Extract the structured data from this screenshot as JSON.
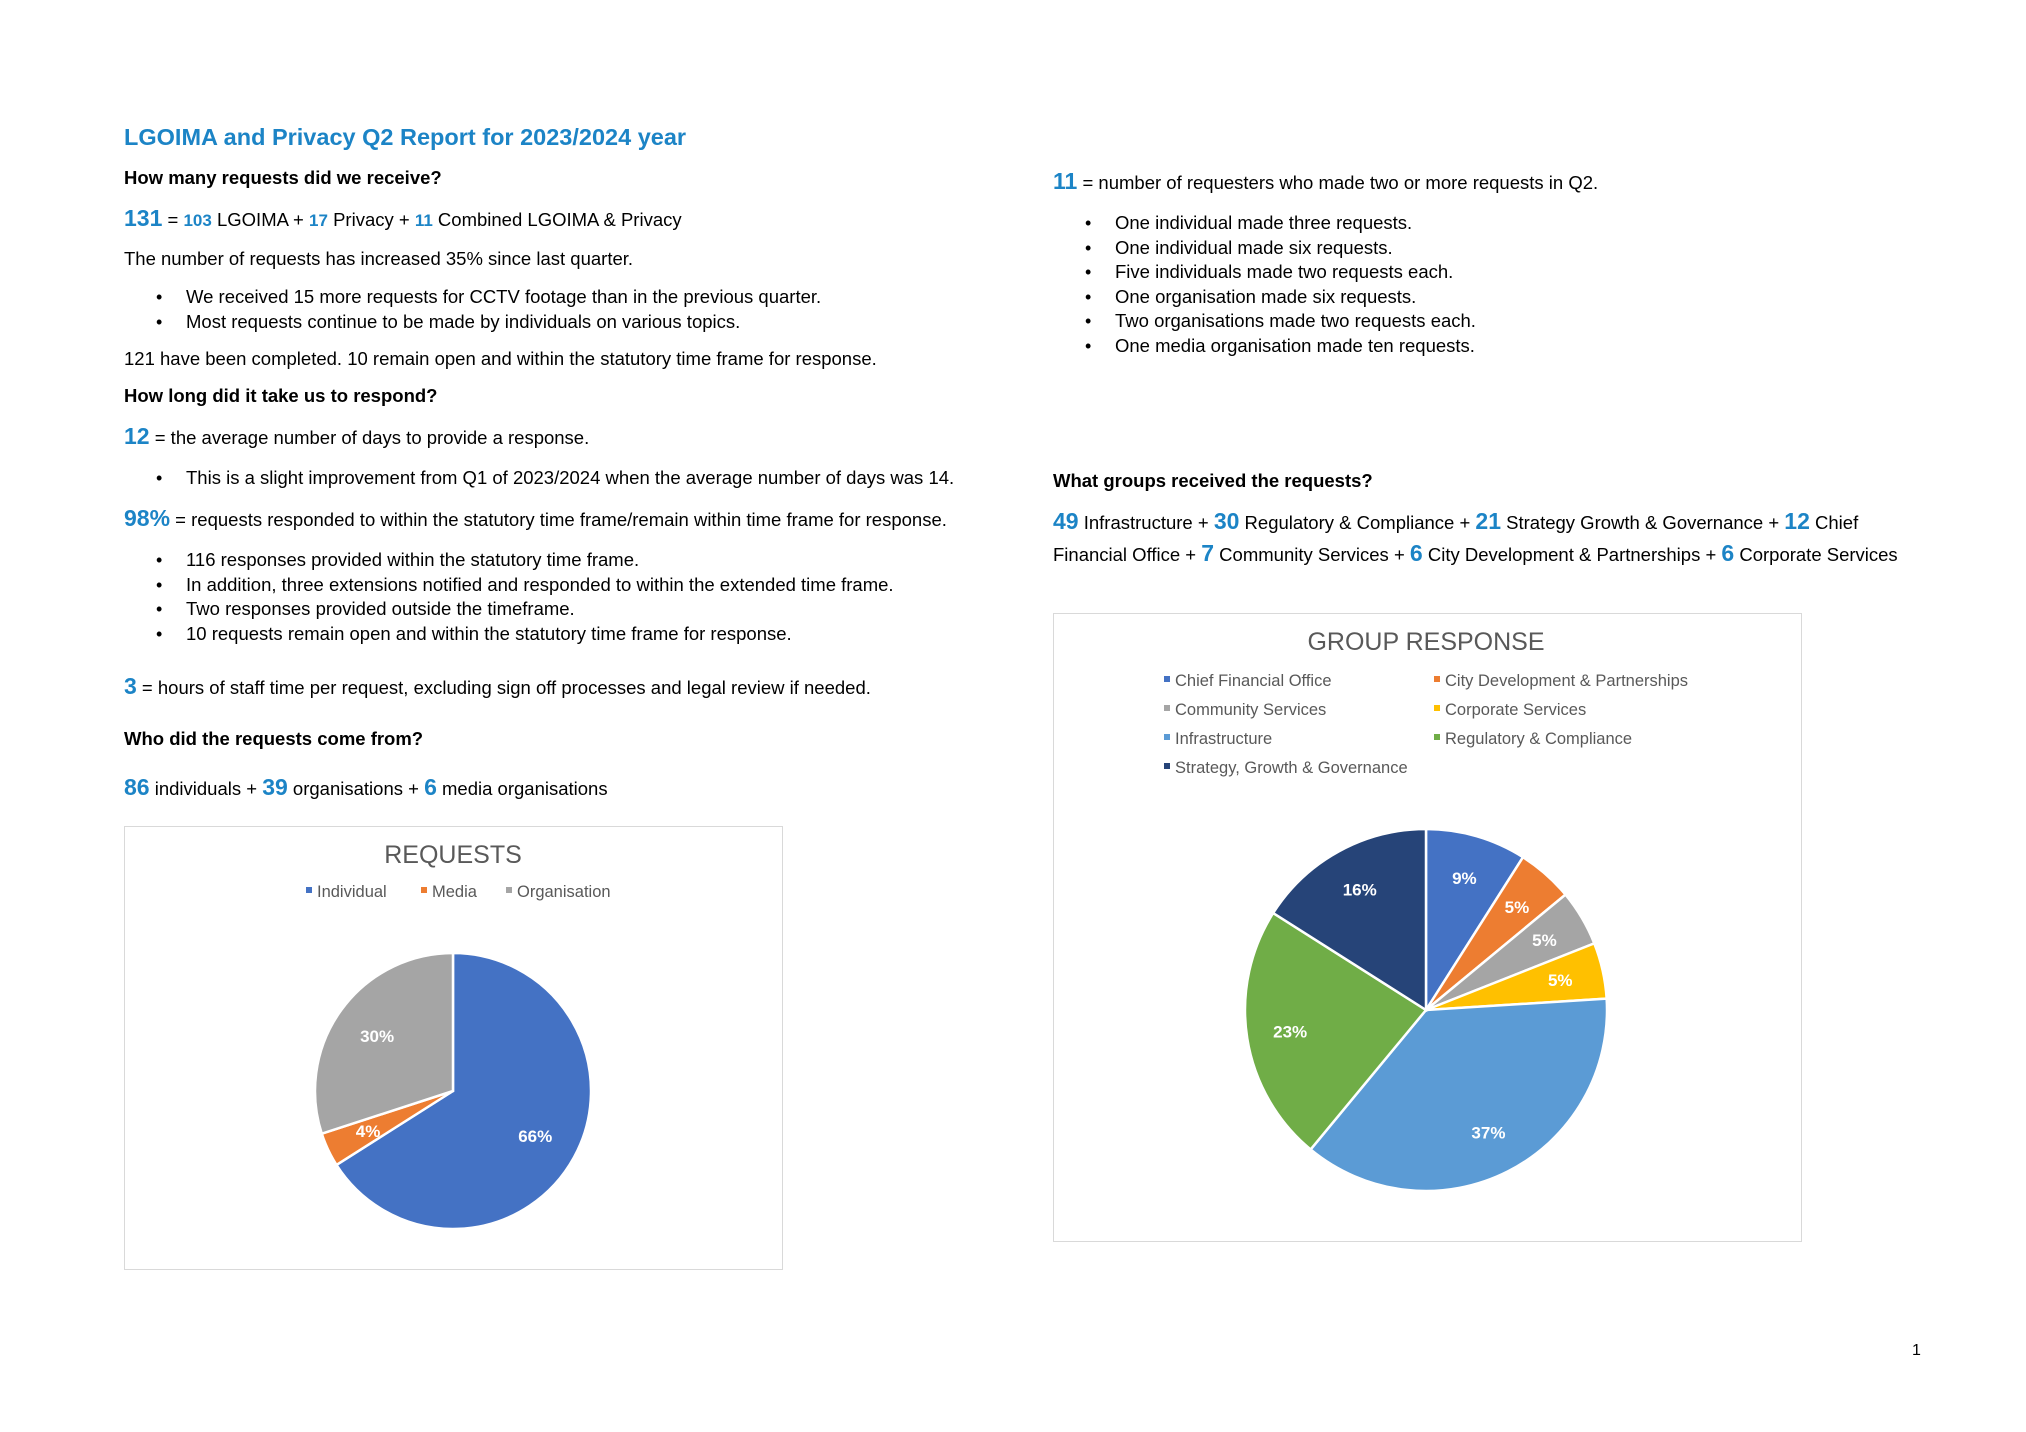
{
  "title": "LGOIMA and Privacy Q2 Report for 2023/2024 year",
  "q1": {
    "heading": "How many requests did we receive?",
    "total": "131",
    "eq": " = ",
    "lgoima_n": "103",
    "lgoima_t": " LGOIMA + ",
    "privacy_n": "17",
    "privacy_t": " Privacy + ",
    "combined_n": "11",
    "combined_t": " Combined LGOIMA & Privacy",
    "increase": "The number of requests has increased 35% since last quarter.",
    "bullets": [
      "We received 15 more requests for CCTV footage than in the previous quarter.",
      "Most requests continue to be made by individuals on various topics."
    ],
    "completed": "121 have been completed. 10 remain open and within the statutory time frame for response."
  },
  "q2": {
    "heading": "How long did it take us to respond?",
    "days_n": "12",
    "days_t": " = the average number of days to provide a response.",
    "days_bullet": "This is a slight improvement from Q1 of 2023/2024 when the average number of days was 14.",
    "pct_n": "98%",
    "pct_t": " = requests responded to within the statutory time frame/remain within time frame for response.",
    "pct_bullets": [
      "116 responses provided within the statutory time frame.",
      "In addition, three extensions notified and responded to within the extended time frame.",
      "Two responses provided outside the timeframe.",
      "10 requests remain open and within the statutory time frame for response."
    ],
    "hours_n": "3",
    "hours_t": " = hours of staff time per request, excluding sign off processes and legal review if needed."
  },
  "q3": {
    "heading": "Who did the requests come from?",
    "ind_n": "86",
    "ind_t": " individuals + ",
    "org_n": "39",
    "org_t": " organisations + ",
    "media_n": "6",
    "media_t": " media organisations"
  },
  "repeat": {
    "n": "11",
    "t": " = number of requesters who made two or more requests in Q2.",
    "bullets": [
      "One individual made three requests.",
      "One individual made six requests.",
      "Five individuals made two requests each.",
      "One organisation made six requests.",
      "Two organisations made two requests each.",
      "One media organisation made ten requests."
    ]
  },
  "groups": {
    "heading": "What groups received the requests?",
    "n1": "49",
    "t1": " Infrastructure + ",
    "n2": "30",
    "t2": " Regulatory & Compliance + ",
    "n3": "21",
    "t3": " Strategy Growth & Governance + ",
    "n4": "12",
    "t4": " Chief Financial Office + ",
    "n5": "7",
    "t5": " Community Services + ",
    "n6": "6",
    "t6": " City Development & Partnerships + ",
    "n7": "6",
    "t7": " Corporate Services"
  },
  "page_number": "1",
  "chart_data": [
    {
      "type": "pie",
      "title": "REQUESTS",
      "legend_position": "top",
      "categories": [
        "Individual",
        "Media",
        "Organisation"
      ],
      "values": [
        66,
        4,
        30
      ],
      "labels": [
        "66%",
        "4%",
        "30%"
      ],
      "colors": [
        "#4472c4",
        "#ed7d31",
        "#a5a5a5"
      ]
    },
    {
      "type": "pie",
      "title": "GROUP RESPONSE",
      "legend_position": "top",
      "categories": [
        "Chief Financial Office",
        "City Development & Partnerships",
        "Community Services",
        "Corporate Services",
        "Infrastructure",
        "Regulatory & Compliance",
        "Strategy, Growth & Governance"
      ],
      "values": [
        9,
        5,
        5,
        5,
        37,
        23,
        16
      ],
      "labels": [
        "9%",
        "5%",
        "5%",
        "5%",
        "37%",
        "23%",
        "16%"
      ],
      "colors": [
        "#4472c4",
        "#ed7d31",
        "#a5a5a5",
        "#ffc000",
        "#5b9bd5",
        "#70ad47",
        "#264478"
      ]
    }
  ]
}
